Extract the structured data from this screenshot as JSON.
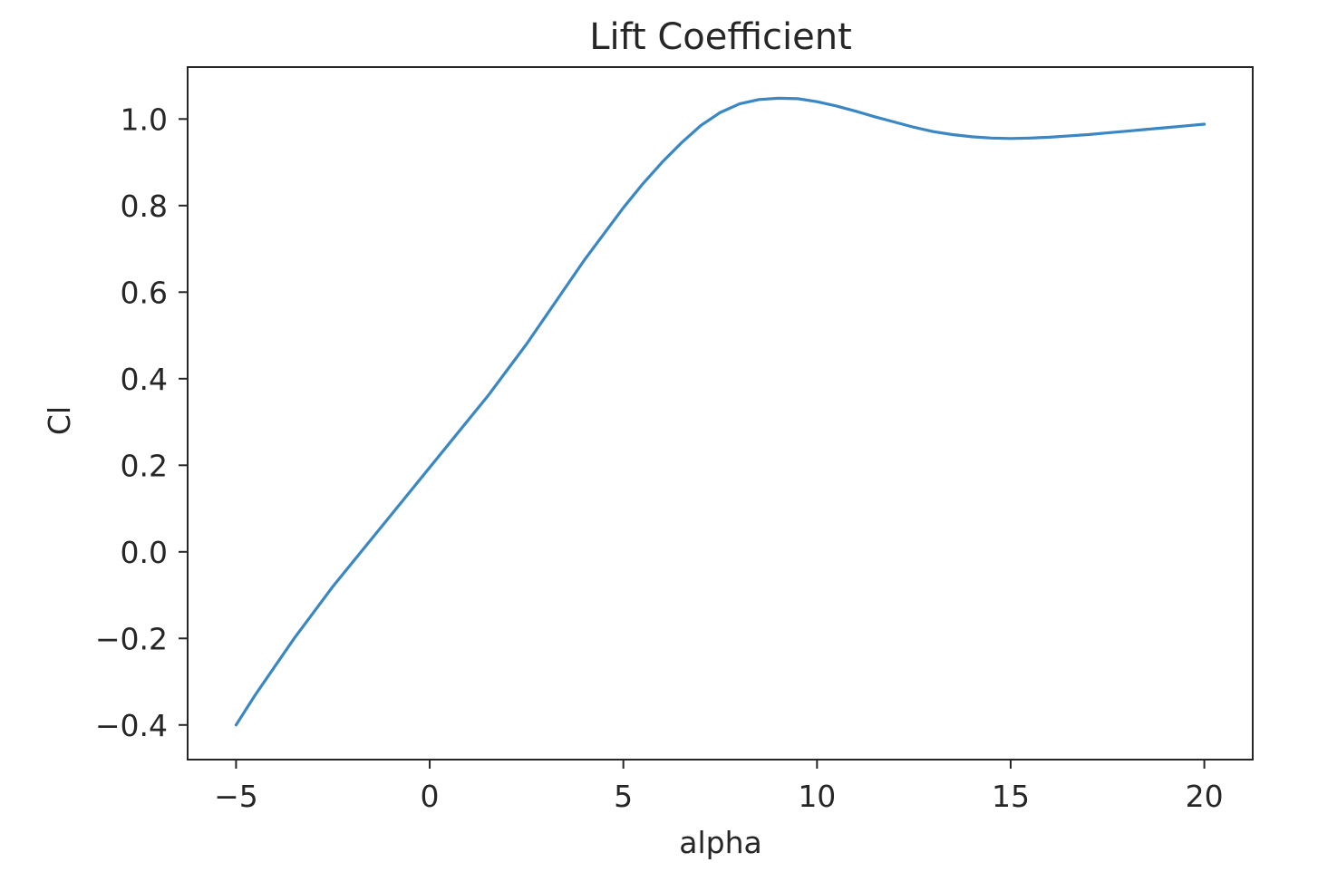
{
  "chart_data": {
    "type": "line",
    "title": "Lift Coefficient",
    "xlabel": "alpha",
    "ylabel": "Cl",
    "xlim": [
      -6.25,
      21.25
    ],
    "ylim": [
      -0.48,
      1.12
    ],
    "xticks": [
      -5,
      0,
      5,
      10,
      15,
      20
    ],
    "xtick_labels": [
      "−5",
      "0",
      "5",
      "10",
      "15",
      "20"
    ],
    "yticks": [
      -0.4,
      -0.2,
      0.0,
      0.2,
      0.4,
      0.6,
      0.8,
      1.0
    ],
    "ytick_labels": [
      "−0.4",
      "−0.2",
      "0.0",
      "0.2",
      "0.4",
      "0.6",
      "0.8",
      "1.0"
    ],
    "grid": false,
    "line_color": "#3a87c3",
    "series": [
      {
        "x": [
          -5,
          -4.5,
          -4,
          -3.5,
          -3,
          -2.5,
          -2,
          -1.5,
          -1,
          -0.5,
          0,
          0.5,
          1,
          1.5,
          2,
          2.5,
          3,
          3.5,
          4,
          4.5,
          5,
          5.5,
          6,
          6.5,
          7,
          7.5,
          8,
          8.5,
          9,
          9.5,
          10,
          10.5,
          11,
          11.5,
          12,
          12.5,
          13,
          13.5,
          14,
          14.5,
          15,
          15.5,
          16,
          16.5,
          17,
          17.5,
          18,
          18.5,
          19,
          19.5,
          20
        ],
        "y": [
          -0.4,
          -0.33,
          -0.265,
          -0.2,
          -0.14,
          -0.08,
          -0.025,
          0.03,
          0.085,
          0.14,
          0.195,
          0.25,
          0.305,
          0.36,
          0.42,
          0.48,
          0.545,
          0.61,
          0.675,
          0.735,
          0.795,
          0.85,
          0.9,
          0.945,
          0.985,
          1.015,
          1.035,
          1.045,
          1.048,
          1.047,
          1.04,
          1.03,
          1.018,
          1.005,
          0.993,
          0.981,
          0.971,
          0.964,
          0.959,
          0.956,
          0.955,
          0.956,
          0.958,
          0.961,
          0.964,
          0.968,
          0.972,
          0.976,
          0.98,
          0.984,
          0.988
        ]
      }
    ]
  }
}
